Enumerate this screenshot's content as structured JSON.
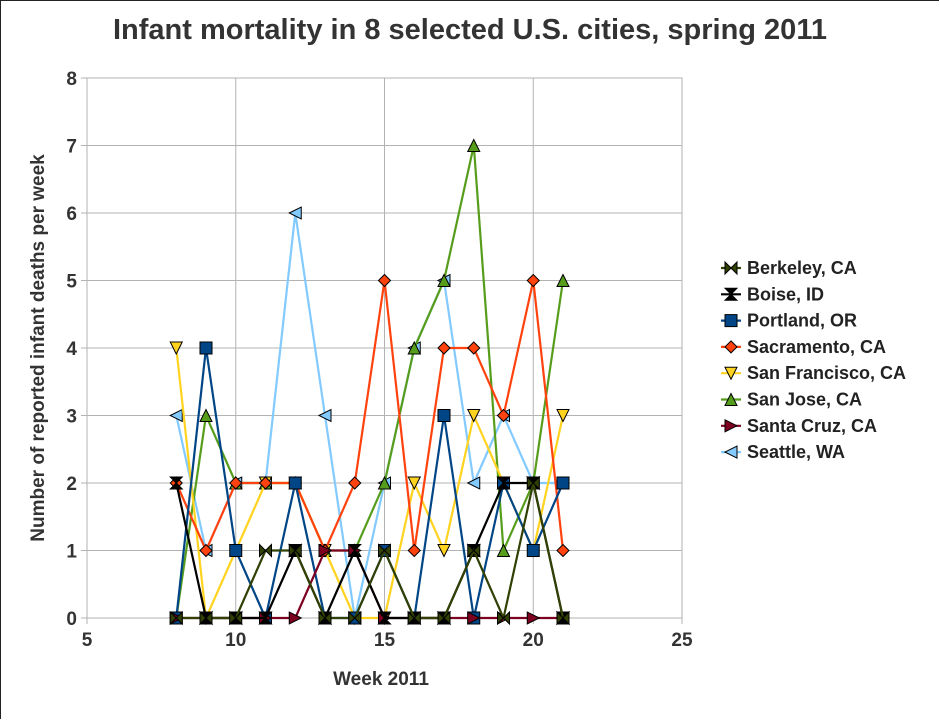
{
  "chart_data": {
    "type": "line",
    "title": "Infant mortality in 8 selected U.S. cities, spring 2011",
    "xlabel": "Week 2011",
    "ylabel": "Number of reported infant deaths per week",
    "xlim": [
      5,
      25
    ],
    "ylim": [
      0,
      8
    ],
    "xticks": [
      5,
      10,
      15,
      20,
      25
    ],
    "yticks": [
      0,
      1,
      2,
      3,
      4,
      5,
      6,
      7,
      8
    ],
    "grid": true,
    "legend_position": "right",
    "x": [
      8,
      9,
      10,
      11,
      12,
      13,
      14,
      15,
      16,
      17,
      18,
      19,
      20,
      21
    ],
    "series": [
      {
        "name": "Seattle, WA",
        "color": "#83caff",
        "marker": "triangle-left",
        "values": [
          3,
          1,
          2,
          2,
          6,
          3,
          0,
          2,
          4,
          5,
          2,
          3,
          2,
          2
        ]
      },
      {
        "name": "San Jose, CA",
        "color": "#579d1c",
        "marker": "triangle-up",
        "values": [
          0,
          3,
          2,
          2,
          2,
          1,
          1,
          2,
          4,
          5,
          7,
          1,
          2,
          5
        ]
      },
      {
        "name": "San Francisco, CA",
        "color": "#ffd320",
        "marker": "triangle-down",
        "values": [
          4,
          0,
          1,
          2,
          2,
          1,
          0,
          0,
          2,
          1,
          3,
          2,
          1,
          3
        ]
      },
      {
        "name": "Sacramento, CA",
        "color": "#ff420e",
        "marker": "diamond",
        "values": [
          2,
          1,
          2,
          2,
          2,
          1,
          2,
          5,
          1,
          4,
          4,
          3,
          5,
          1
        ]
      },
      {
        "name": "Portland, OR",
        "color": "#004586",
        "marker": "square",
        "values": [
          0,
          4,
          1,
          0,
          2,
          0,
          0,
          1,
          0,
          3,
          0,
          2,
          1,
          2
        ]
      },
      {
        "name": "Santa Cruz, CA",
        "color": "#7e0021",
        "marker": "triangle-right",
        "values": [
          0,
          0,
          0,
          0,
          0,
          1,
          1,
          0,
          0,
          0,
          0,
          0,
          0,
          0
        ]
      },
      {
        "name": "Boise, ID",
        "color": "#000000",
        "marker": "hourglass",
        "values": [
          2,
          0,
          0,
          0,
          1,
          0,
          1,
          0,
          0,
          0,
          1,
          2,
          2,
          0
        ]
      },
      {
        "name": "Berkeley, CA",
        "color": "#314004",
        "marker": "bowtie",
        "values": [
          0,
          0,
          0,
          1,
          1,
          0,
          0,
          1,
          0,
          0,
          1,
          0,
          2,
          0
        ]
      }
    ],
    "legend_order": [
      "Berkeley, CA",
      "Boise, ID",
      "Portland, OR",
      "Sacramento, CA",
      "San Francisco, CA",
      "San Jose, CA",
      "Santa Cruz, CA",
      "Seattle, WA"
    ]
  }
}
